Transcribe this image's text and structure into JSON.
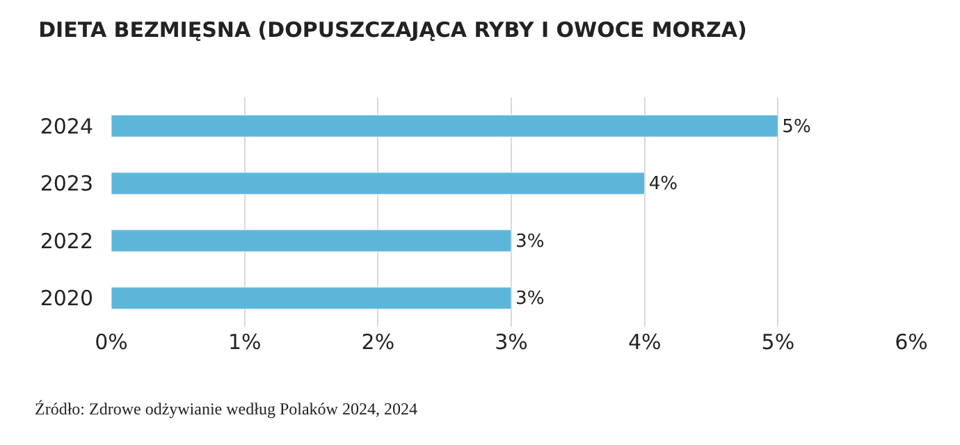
{
  "chart_data": {
    "type": "bar",
    "orientation": "horizontal",
    "title": "DIETA BEZMIĘSNA (DOPUSZCZAJĄCA RYBY I OWOCE MORZA)",
    "categories": [
      "2024",
      "2023",
      "2022",
      "2020"
    ],
    "values": [
      5,
      4,
      3,
      3
    ],
    "value_labels": [
      "5%",
      "4%",
      "3%",
      "3%"
    ],
    "color": "#5eb5da",
    "xlim": [
      0,
      6
    ],
    "xticks": [
      {
        "value": 0,
        "label": "0%"
      },
      {
        "value": 1,
        "label": "1%"
      },
      {
        "value": 2,
        "label": "2%"
      },
      {
        "value": 3,
        "label": "3%"
      },
      {
        "value": 4,
        "label": "4%"
      },
      {
        "value": 5,
        "label": "5%"
      },
      {
        "value": 6,
        "label": "6%"
      }
    ],
    "grid": "x",
    "legend": false,
    "annotations": [
      "Źródło: Zdrowe odżywianie według Polaków 2024, 2024"
    ]
  }
}
